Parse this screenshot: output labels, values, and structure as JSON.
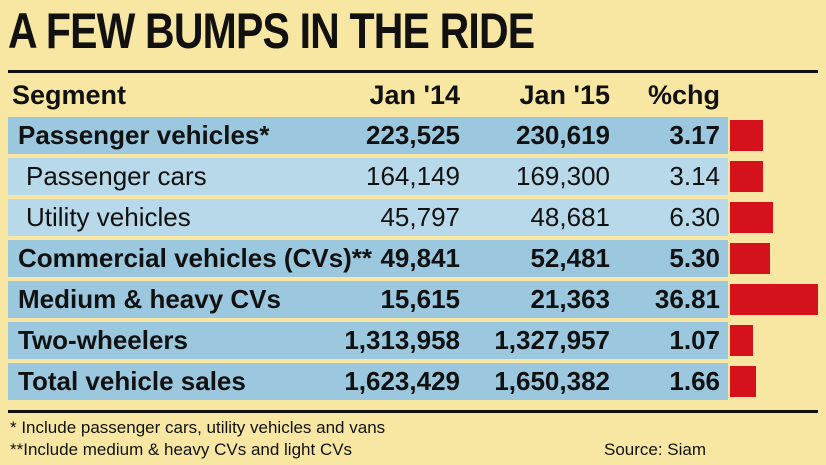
{
  "title": "A FEW BUMPS IN THE RIDE",
  "headers": {
    "segment": "Segment",
    "jan14": "Jan '14",
    "jan15": "Jan '15",
    "chg": "%chg"
  },
  "colors": {
    "background": "#f7e7a3",
    "row_main": "#9bc8df",
    "row_sub": "#b8d9ea",
    "bar": "#d5121c"
  },
  "chart_data": {
    "type": "table",
    "title": "A FEW BUMPS IN THE RIDE",
    "columns": [
      "Segment",
      "Jan '14",
      "Jan '15",
      "%chg"
    ],
    "rows": [
      {
        "segment": "Passenger vehicles*",
        "jan14": "223,525",
        "jan15": "230,619",
        "chg": "3.17",
        "level": "main"
      },
      {
        "segment": "Passenger cars",
        "jan14": "164,149",
        "jan15": "169,300",
        "chg": "3.14",
        "level": "sub"
      },
      {
        "segment": "Utility vehicles",
        "jan14": "45,797",
        "jan15": "48,681",
        "chg": "6.30",
        "level": "sub"
      },
      {
        "segment": "Commercial vehicles (CVs)**",
        "jan14": "49,841",
        "jan15": "52,481",
        "chg": "5.30",
        "level": "main"
      },
      {
        "segment": "Medium & heavy CVs",
        "jan14": "15,615",
        "jan15": "21,363",
        "chg": "36.81",
        "level": "main"
      },
      {
        "segment": "Two-wheelers",
        "jan14": "1,313,958",
        "jan15": "1,327,957",
        "chg": "1.07",
        "level": "main"
      },
      {
        "segment": "Total vehicle sales",
        "jan14": "1,623,429",
        "jan15": "1,650,382",
        "chg": "1.66",
        "level": "main"
      }
    ],
    "bars": {
      "values": [
        3.17,
        3.14,
        6.3,
        5.3,
        36.81,
        1.07,
        1.66
      ]
    }
  },
  "footnotes": {
    "note1": "* Include passenger cars, utility vehicles and vans",
    "note2": "**Include medium & heavy CVs and light CVs",
    "source": "Source: Siam"
  }
}
